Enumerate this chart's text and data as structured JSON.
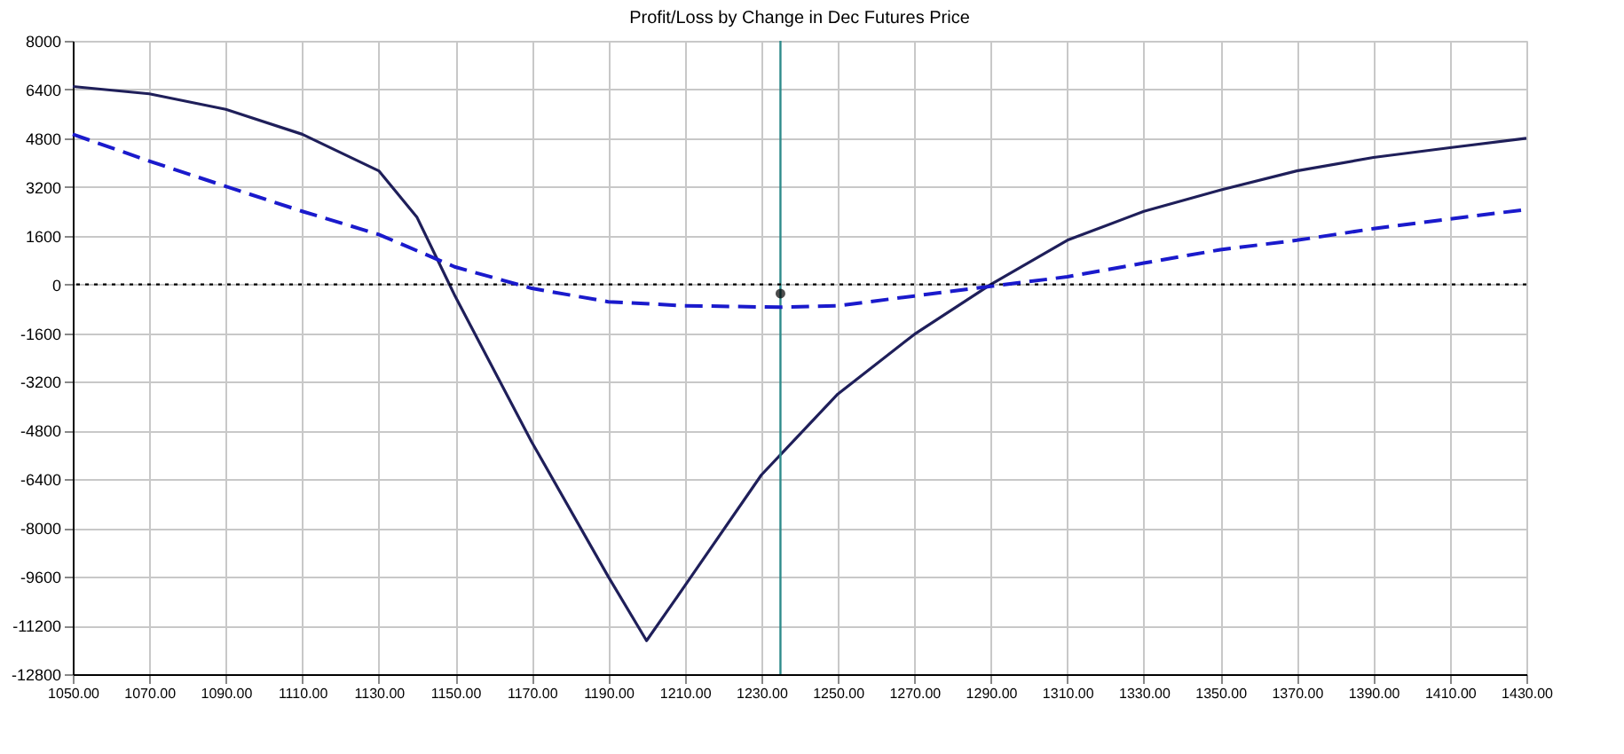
{
  "chart_data": {
    "type": "line",
    "title": "Profit/Loss by Change in Dec Futures Price",
    "x": [
      1050,
      1070,
      1090,
      1110,
      1130,
      1140,
      1150,
      1170,
      1190,
      1200,
      1210,
      1230,
      1250,
      1270,
      1290,
      1310,
      1330,
      1350,
      1370,
      1390,
      1410,
      1430
    ],
    "series": [
      {
        "color": "#1f1f5a",
        "line_style": "solid",
        "values": [
          6500,
          6260,
          5750,
          4930,
          3730,
          2200,
          -400,
          -5180,
          -9600,
          -11700,
          -9900,
          -6260,
          -3600,
          -1640,
          0,
          1450,
          2400,
          3100,
          3730,
          4170,
          4490,
          4800
        ]
      },
      {
        "color": "#1a1acc",
        "line_style": "dashed",
        "x": [
          1050,
          1070,
          1090,
          1110,
          1130,
          1150,
          1170,
          1190,
          1210,
          1235,
          1250,
          1270,
          1290,
          1310,
          1330,
          1350,
          1370,
          1390,
          1410,
          1430
        ],
        "values": [
          4930,
          4050,
          3220,
          2400,
          1640,
          570,
          -130,
          -570,
          -700,
          -750,
          -700,
          -380,
          -60,
          250,
          700,
          1140,
          1450,
          1830,
          2150,
          2460
        ]
      },
      {
        "type": "scatter",
        "marker": "circle",
        "color": "#000000",
        "x": [
          1235
        ],
        "values": [
          -300
        ]
      }
    ],
    "xlim": [
      1050,
      1430
    ],
    "xticks": [
      {
        "value": 1050,
        "label": "1050.00"
      },
      {
        "value": 1070,
        "label": "1070.00"
      },
      {
        "value": 1090,
        "label": "1090.00"
      },
      {
        "value": 1110,
        "label": "1110.00"
      },
      {
        "value": 1130,
        "label": "1130.00"
      },
      {
        "value": 1150,
        "label": "1150.00"
      },
      {
        "value": 1170,
        "label": "1170.00"
      },
      {
        "value": 1190,
        "label": "1190.00"
      },
      {
        "value": 1210,
        "label": "1210.00"
      },
      {
        "value": 1230,
        "label": "1230.00"
      },
      {
        "value": 1250,
        "label": "1250.00"
      },
      {
        "value": 1270,
        "label": "1270.00"
      },
      {
        "value": 1290,
        "label": "1290.00"
      },
      {
        "value": 1310,
        "label": "1310.00"
      },
      {
        "value": 1330,
        "label": "1330.00"
      },
      {
        "value": 1350,
        "label": "1350.00"
      },
      {
        "value": 1370,
        "label": "1370.00"
      },
      {
        "value": 1390,
        "label": "1390.00"
      },
      {
        "value": 1410,
        "label": "1410.00"
      },
      {
        "value": 1430,
        "label": "1430.00"
      }
    ],
    "ylim": [
      -12800,
      8000
    ],
    "yticks": [
      -12800,
      -11200,
      -9600,
      -8000,
      -6400,
      -4800,
      -3200,
      -1600,
      0,
      1600,
      3200,
      4800,
      6400,
      8000
    ],
    "ref_lines": [
      {
        "axis": "y",
        "value": 0,
        "color": "#000000",
        "line_style": "dotted"
      },
      {
        "axis": "x",
        "value": 1235,
        "color": "#2e8b8b",
        "line_style": "solid"
      }
    ],
    "grid": true,
    "legend": false,
    "marker": "none"
  }
}
